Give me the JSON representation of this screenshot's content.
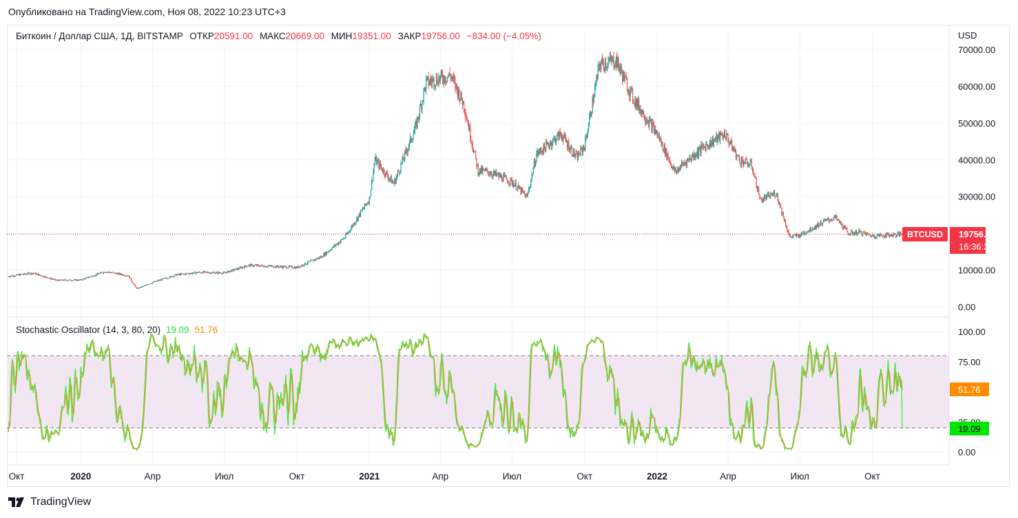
{
  "header": {
    "published": "Опубликовано на TradingView.com, Ноя 08, 2022 10:23 UTC+3"
  },
  "legend": {
    "symbol": "Биткоин / Доллар США, 1Д, BITSTAMP",
    "open_label": "ОТКР",
    "open": "20591.00",
    "high_label": "МАКС",
    "high": "20669.00",
    "low_label": "МИН",
    "low": "19351.00",
    "close_label": "ЗАКР",
    "close": "19756.00",
    "change": "−834.00 (−4.05%)"
  },
  "price_axis": {
    "currency": "USD",
    "ticks": [
      "70000.00",
      "60000.00",
      "50000.00",
      "40000.00",
      "30000.00",
      "20000.00",
      "10000.00",
      "0.00"
    ],
    "symbol_tag": "BTCUSD",
    "last_price": "19756.00",
    "countdown": "16:36:37"
  },
  "stochastic": {
    "name": "Stochastic Oscillator",
    "params": "(14, 3, 80, 20)",
    "k_value": "19.09",
    "d_value": "51.76",
    "axis_ticks": [
      "100.00",
      "75.00",
      "25.00",
      "0.00"
    ]
  },
  "time_axis": {
    "labels": [
      {
        "text": "Окт",
        "bold": false
      },
      {
        "text": "2020",
        "bold": true
      },
      {
        "text": "Апр",
        "bold": false
      },
      {
        "text": "Июл",
        "bold": false
      },
      {
        "text": "Окт",
        "bold": false
      },
      {
        "text": "2021",
        "bold": true
      },
      {
        "text": "Апр",
        "bold": false
      },
      {
        "text": "Июл",
        "bold": false
      },
      {
        "text": "Окт",
        "bold": false
      },
      {
        "text": "2022",
        "bold": true
      },
      {
        "text": "Апр",
        "bold": false
      },
      {
        "text": "Июл",
        "bold": false
      },
      {
        "text": "Окт",
        "bold": false
      }
    ]
  },
  "brand": "TradingView",
  "colors": {
    "up": "#26a69a",
    "down": "#ef5350",
    "k": "#26e03b",
    "d": "#ff8c00",
    "band": "#f3e6f3",
    "last": "#f23645"
  },
  "chart_data": [
    {
      "type": "candlestick",
      "title": "Биткоин / Доллар США, 1Д, BITSTAMP",
      "ylabel": "USD",
      "ylim": [
        0,
        72000
      ],
      "x_range": [
        "2019-10-01",
        "2022-11-08"
      ],
      "x": [
        "2019-10-01",
        "2019-11-01",
        "2019-12-01",
        "2020-01-01",
        "2020-02-01",
        "2020-03-01",
        "2020-03-12",
        "2020-04-01",
        "2020-05-01",
        "2020-06-01",
        "2020-07-01",
        "2020-08-01",
        "2020-09-01",
        "2020-10-01",
        "2020-11-01",
        "2020-12-01",
        "2021-01-01",
        "2021-01-08",
        "2021-02-01",
        "2021-03-01",
        "2021-03-14",
        "2021-04-14",
        "2021-05-01",
        "2021-05-19",
        "2021-06-01",
        "2021-07-01",
        "2021-07-20",
        "2021-08-01",
        "2021-09-01",
        "2021-09-21",
        "2021-10-01",
        "2021-10-20",
        "2021-11-10",
        "2021-12-01",
        "2022-01-01",
        "2022-01-24",
        "2022-02-01",
        "2022-03-01",
        "2022-03-28",
        "2022-04-15",
        "2022-05-01",
        "2022-05-12",
        "2022-06-01",
        "2022-06-18",
        "2022-07-01",
        "2022-08-01",
        "2022-08-15",
        "2022-09-01",
        "2022-09-15",
        "2022-10-01",
        "2022-11-08"
      ],
      "close": [
        8300,
        9200,
        7200,
        7300,
        9600,
        8500,
        4900,
        6600,
        8700,
        9400,
        9200,
        11300,
        11000,
        10700,
        13600,
        18900,
        29300,
        40000,
        33500,
        49000,
        61000,
        63000,
        55000,
        37000,
        36700,
        34000,
        29800,
        41500,
        47000,
        40500,
        43800,
        66000,
        67000,
        57000,
        47000,
        36500,
        38500,
        43500,
        47100,
        40000,
        38500,
        29000,
        31000,
        19000,
        19500,
        23200,
        24300,
        20000,
        20300,
        19300,
        19756
      ]
    },
    {
      "type": "line",
      "title": "Stochastic Oscillator (14, 3, 80, 20)",
      "ylim": [
        0,
        100
      ],
      "bands": {
        "upper": 80,
        "lower": 20
      },
      "series": [
        {
          "name": "%K",
          "last": 19.09
        },
        {
          "name": "%D",
          "last": 51.76
        }
      ]
    }
  ]
}
